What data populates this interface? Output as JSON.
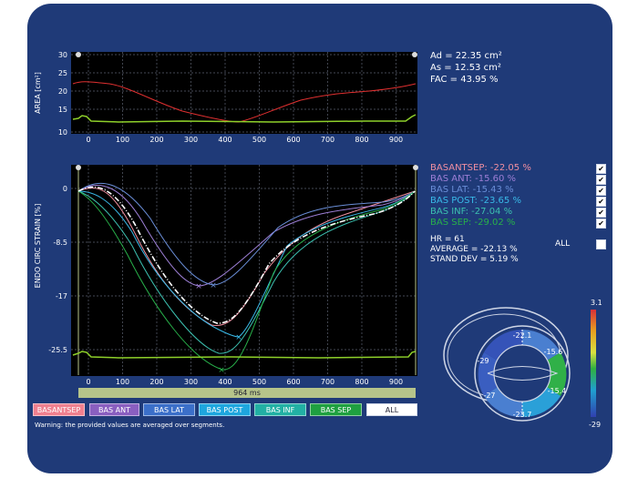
{
  "area": {
    "ylabel": "AREA [cm²]",
    "yticks": [
      "30",
      "25",
      "20",
      "15",
      "10"
    ],
    "xticks": [
      "0",
      "100",
      "200",
      "300",
      "400",
      "500",
      "600",
      "700",
      "800",
      "900"
    ]
  },
  "stats": {
    "ad": "Ad = 22.35 cm²",
    "as": "As = 12.53 cm²",
    "fac": "FAC = 43.95 %"
  },
  "strain": {
    "ylabel": "ENDO CIRC STRAIN [%]",
    "yticks": [
      "0",
      "-8.5",
      "-17",
      "-25.5"
    ],
    "xticks": [
      "0",
      "100",
      "200",
      "300",
      "400",
      "500",
      "600",
      "700",
      "800",
      "900"
    ],
    "time_label": "964 ms"
  },
  "segments": [
    {
      "label": "BASANTSEP: -22.05  %",
      "color": "#f08fa0",
      "checked": "✔"
    },
    {
      "label": "BAS ANT:  -15.60  %",
      "color": "#9d7fd6",
      "checked": "✔"
    },
    {
      "label": "BAS LAT:  -15.43  %",
      "color": "#6a8ed8",
      "checked": "✔"
    },
    {
      "label": "BAS POST:  -23.65  %",
      "color": "#39b9e8",
      "checked": "✔"
    },
    {
      "label": "BAS INF:  -27.04  %",
      "color": "#3cc0b0",
      "checked": "✔"
    },
    {
      "label": "BAS SEP:  -29.02  %",
      "color": "#28b04a",
      "checked": "✔"
    }
  ],
  "summary": {
    "hr": "HR = 61",
    "average": "AVERAGE = -22.13 %",
    "stand_dev": "STAND DEV = 5.19 %",
    "all_label": "ALL"
  },
  "buttons": [
    {
      "label": "BASANTSEP",
      "color": "#f0808f"
    },
    {
      "label": "BAS ANT",
      "color": "#8a5fc0"
    },
    {
      "label": "BAS LAT",
      "color": "#3b6fc9"
    },
    {
      "label": "BAS POST",
      "color": "#1ea6de"
    },
    {
      "label": "BAS INF",
      "color": "#22b0a4"
    },
    {
      "label": "BAS SEP",
      "color": "#1fa040"
    },
    {
      "label": "ALL",
      "color": "#ffffff"
    }
  ],
  "warning": "Warning: the provided values are averaged over segments.",
  "ring": {
    "values": [
      "-22.1",
      "-15.6",
      "-15.4",
      "-23.7",
      "-27",
      "-29"
    ],
    "colorbar_max": "3.1",
    "colorbar_min": "-29"
  }
}
